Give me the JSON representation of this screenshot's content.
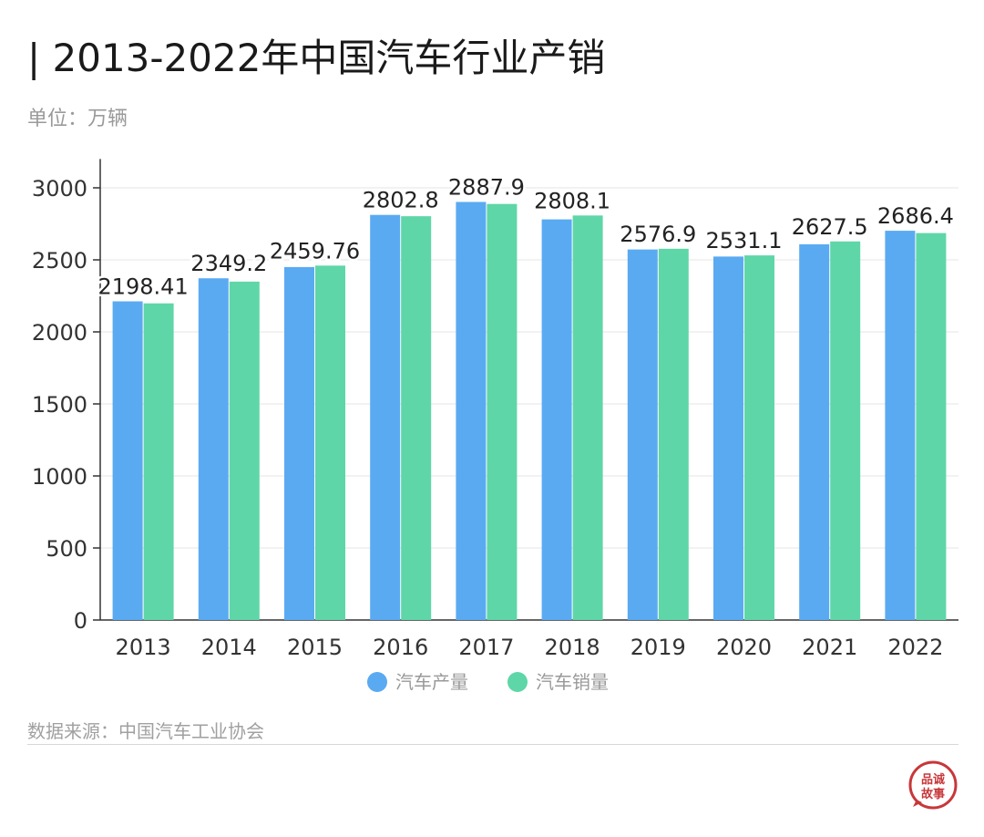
{
  "title": "| 2013-2022年中国汽车行业产销",
  "unit_label": "单位：万辆",
  "source": "数据来源：中国汽车工业协会",
  "logo_text": "品诚故事",
  "colors": {
    "production": "#5aaaf2",
    "sales": "#5fd6a8",
    "axis": "#333333",
    "grid": "#e4e4e4",
    "logo": "#c8373a"
  },
  "chart_data": {
    "type": "bar",
    "title": "",
    "xlabel": "",
    "ylabel": "",
    "ylim": [
      0,
      3200
    ],
    "yticks": [
      0,
      500,
      1000,
      1500,
      2000,
      2500,
      3000
    ],
    "grid": true,
    "legend_position": "bottom",
    "categories": [
      "2013",
      "2014",
      "2015",
      "2016",
      "2017",
      "2018",
      "2019",
      "2020",
      "2021",
      "2022"
    ],
    "series": [
      {
        "name": "汽车产量",
        "values": [
          2212,
          2372,
          2450,
          2812,
          2902,
          2781,
          2572,
          2523,
          2608,
          2702
        ]
      },
      {
        "name": "汽车销量",
        "values": [
          2198,
          2349,
          2460,
          2803,
          2888,
          2808,
          2577,
          2531,
          2628,
          2686
        ]
      }
    ],
    "data_labels": [
      "2198.41",
      "2349.2",
      "2459.76",
      "2802.8",
      "2887.9",
      "2808.1",
      "2576.9",
      "2531.1",
      "2627.5",
      "2686.4"
    ]
  }
}
